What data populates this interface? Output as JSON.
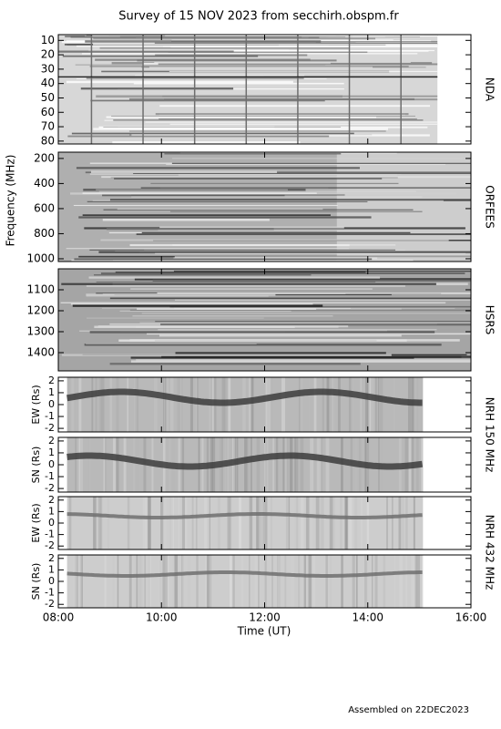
{
  "figure": {
    "title": "Survey of 15 NOV 2023 from secchirh.obspm.fr",
    "ylabel": "Frequency (MHz)",
    "xlabel": "Time (UT)",
    "xlim": [
      8,
      16
    ],
    "xticks": [
      {
        "value": 8,
        "label": "08:00"
      },
      {
        "value": 10,
        "label": "10:00"
      },
      {
        "value": 12,
        "label": "12:00"
      },
      {
        "value": 14,
        "label": "14:00"
      },
      {
        "value": 16,
        "label": "16:00"
      }
    ],
    "footer": "Assembled on 22DEC2023"
  },
  "chart_data": [
    {
      "type": "heatmap",
      "label": "NDA",
      "ylim": [
        82,
        6
      ],
      "yticks": [
        10,
        20,
        30,
        40,
        50,
        60,
        70,
        80
      ],
      "coverage": [
        8,
        15.35
      ]
    },
    {
      "type": "heatmap",
      "label": "ORFEES",
      "ylim": [
        1022,
        150
      ],
      "yticks": [
        200,
        400,
        600,
        800,
        1000
      ],
      "coverage": [
        8,
        16
      ]
    },
    {
      "type": "heatmap",
      "label": "HSRS",
      "ylim": [
        1487,
        1000
      ],
      "yticks": [
        1100,
        1200,
        1300,
        1400
      ],
      "coverage": [
        8,
        16
      ]
    },
    {
      "type": "heatmap",
      "label": "NRH 150 MHz",
      "ylabel": "EW (Rs)",
      "ylim": [
        -2.3,
        2.3
      ],
      "yticks": [
        -2,
        -1,
        0,
        1,
        2
      ],
      "coverage": [
        8.17,
        15.07
      ]
    },
    {
      "type": "heatmap",
      "ylabel": "SN (Rs)",
      "ylim": [
        -2.3,
        2.3
      ],
      "yticks": [
        -2,
        -1,
        0,
        1,
        2
      ],
      "coverage": [
        8.17,
        15.07
      ]
    },
    {
      "type": "heatmap",
      "label": "NRH 432 MHz",
      "ylabel": "EW (Rs)",
      "ylim": [
        -2.3,
        2.3
      ],
      "yticks": [
        -2,
        -1,
        0,
        1,
        2
      ],
      "coverage": [
        8.17,
        15.07
      ]
    },
    {
      "type": "heatmap",
      "ylabel": "SN (Rs)",
      "ylim": [
        -2.3,
        2.3
      ],
      "yticks": [
        -2,
        -1,
        0,
        1,
        2
      ],
      "coverage": [
        8.17,
        15.07
      ]
    }
  ]
}
